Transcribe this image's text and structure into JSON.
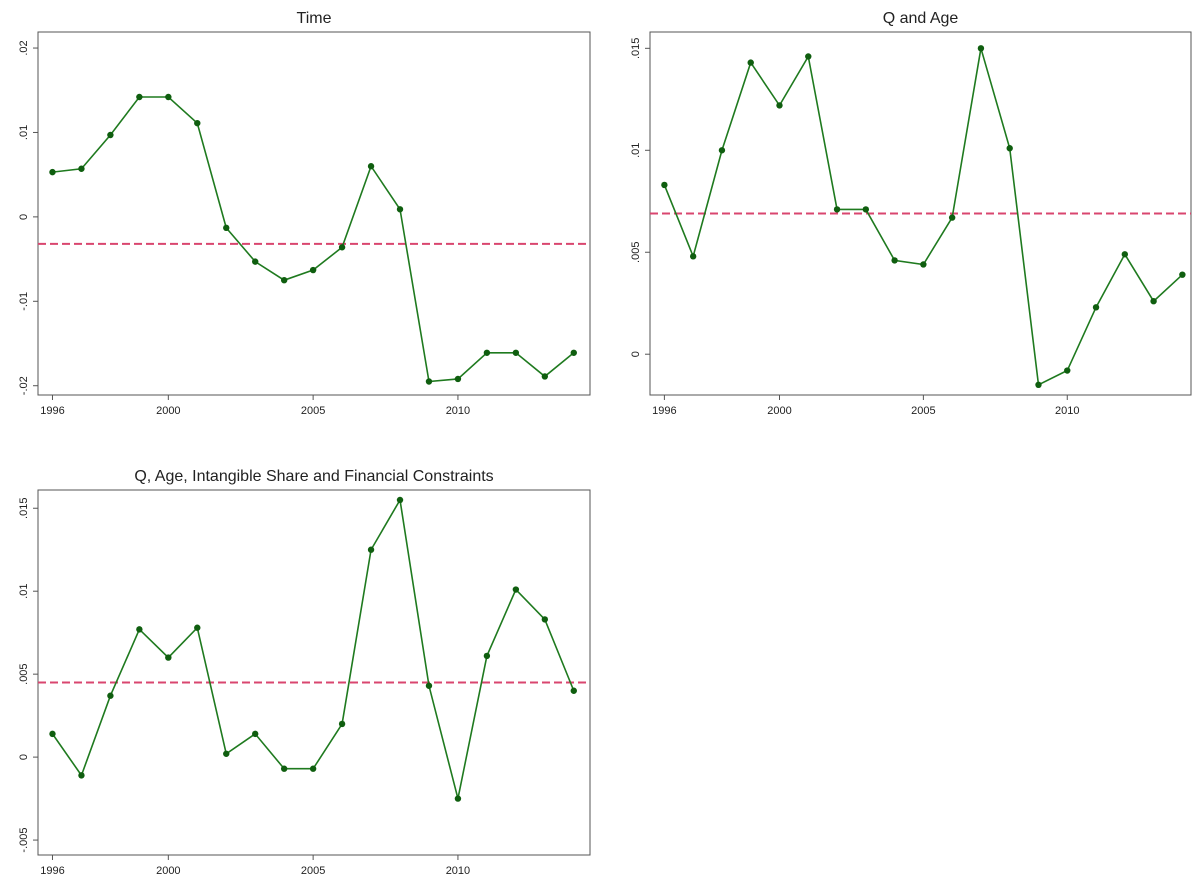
{
  "chart_data": [
    {
      "type": "line",
      "title": "Time",
      "x": [
        1996,
        1997,
        1998,
        1999,
        2000,
        2001,
        2002,
        2003,
        2004,
        2005,
        2006,
        2007,
        2008,
        2009,
        2010,
        2011,
        2012,
        2013,
        2014
      ],
      "values": [
        0.0053,
        0.0057,
        0.0097,
        0.0142,
        0.0142,
        0.0111,
        -0.0013,
        -0.0053,
        -0.0075,
        -0.0063,
        -0.0036,
        0.006,
        0.0009,
        -0.0195,
        -0.0192,
        -0.0161,
        -0.0161,
        -0.0189,
        -0.0161
      ],
      "color": "#1f7a1f",
      "reference_line": {
        "value": -0.0032,
        "color": "#d9466f",
        "dashed": true
      },
      "xlim": [
        1995.5,
        2014.56
      ],
      "xticks": [
        1996,
        2000,
        2005,
        2010
      ],
      "ylim": [
        -0.0211,
        0.0219
      ],
      "yticks": [
        {
          "value": -0.02,
          "label": "-.02"
        },
        {
          "value": -0.01,
          "label": "-.01"
        },
        0,
        {
          "value": 0.01,
          "label": ".01"
        },
        {
          "value": 0.02,
          "label": ".02"
        }
      ]
    },
    {
      "type": "line",
      "title": "Q and Age",
      "x": [
        1996,
        1997,
        1998,
        1999,
        2000,
        2001,
        2002,
        2003,
        2004,
        2005,
        2006,
        2007,
        2008,
        2009,
        2010,
        2011,
        2012,
        2013,
        2014
      ],
      "values": [
        0.0083,
        0.0048,
        0.01,
        0.0143,
        0.0122,
        0.0146,
        0.0071,
        0.0071,
        0.0046,
        0.0044,
        0.0067,
        0.015,
        0.0101,
        -0.0015,
        -0.0008,
        0.0023,
        0.0049,
        0.0026,
        0.0039
      ],
      "color": "#1f7a1f",
      "reference_line": {
        "value": 0.0069,
        "color": "#d9466f",
        "dashed": true
      },
      "xlim": [
        1995.5,
        2014.3
      ],
      "xticks": [
        1996,
        2000,
        2005,
        2010
      ],
      "ylim": [
        -0.002,
        0.0158
      ],
      "yticks": [
        0,
        {
          "value": 0.005,
          "label": ".005"
        },
        {
          "value": 0.01,
          "label": ".01"
        },
        {
          "value": 0.015,
          "label": ".015"
        }
      ]
    },
    {
      "type": "line",
      "title": "Q, Age, Intangible Share and Financial Constraints",
      "x": [
        1996,
        1997,
        1998,
        1999,
        2000,
        2001,
        2002,
        2003,
        2004,
        2005,
        2006,
        2007,
        2008,
        2009,
        2010,
        2011,
        2012,
        2013,
        2014
      ],
      "values": [
        0.0014,
        -0.0011,
        0.0037,
        0.0077,
        0.006,
        0.0078,
        0.0002,
        0.0014,
        -0.0007,
        -0.0007,
        0.002,
        0.0125,
        0.0155,
        0.0043,
        -0.0025,
        0.0061,
        0.0101,
        0.0083,
        0.004
      ],
      "color": "#1f7a1f",
      "reference_line": {
        "value": 0.0045,
        "color": "#d9466f",
        "dashed": true
      },
      "xlim": [
        1995.5,
        2014.56
      ],
      "xticks": [
        1996,
        2000,
        2005,
        2010
      ],
      "ylim": [
        -0.0059,
        0.0161
      ],
      "yticks": [
        {
          "value": -0.005,
          "label": "-.005"
        },
        0,
        {
          "value": 0.005,
          "label": ".005"
        },
        {
          "value": 0.01,
          "label": ".01"
        },
        {
          "value": 0.015,
          "label": ".015"
        }
      ]
    }
  ]
}
